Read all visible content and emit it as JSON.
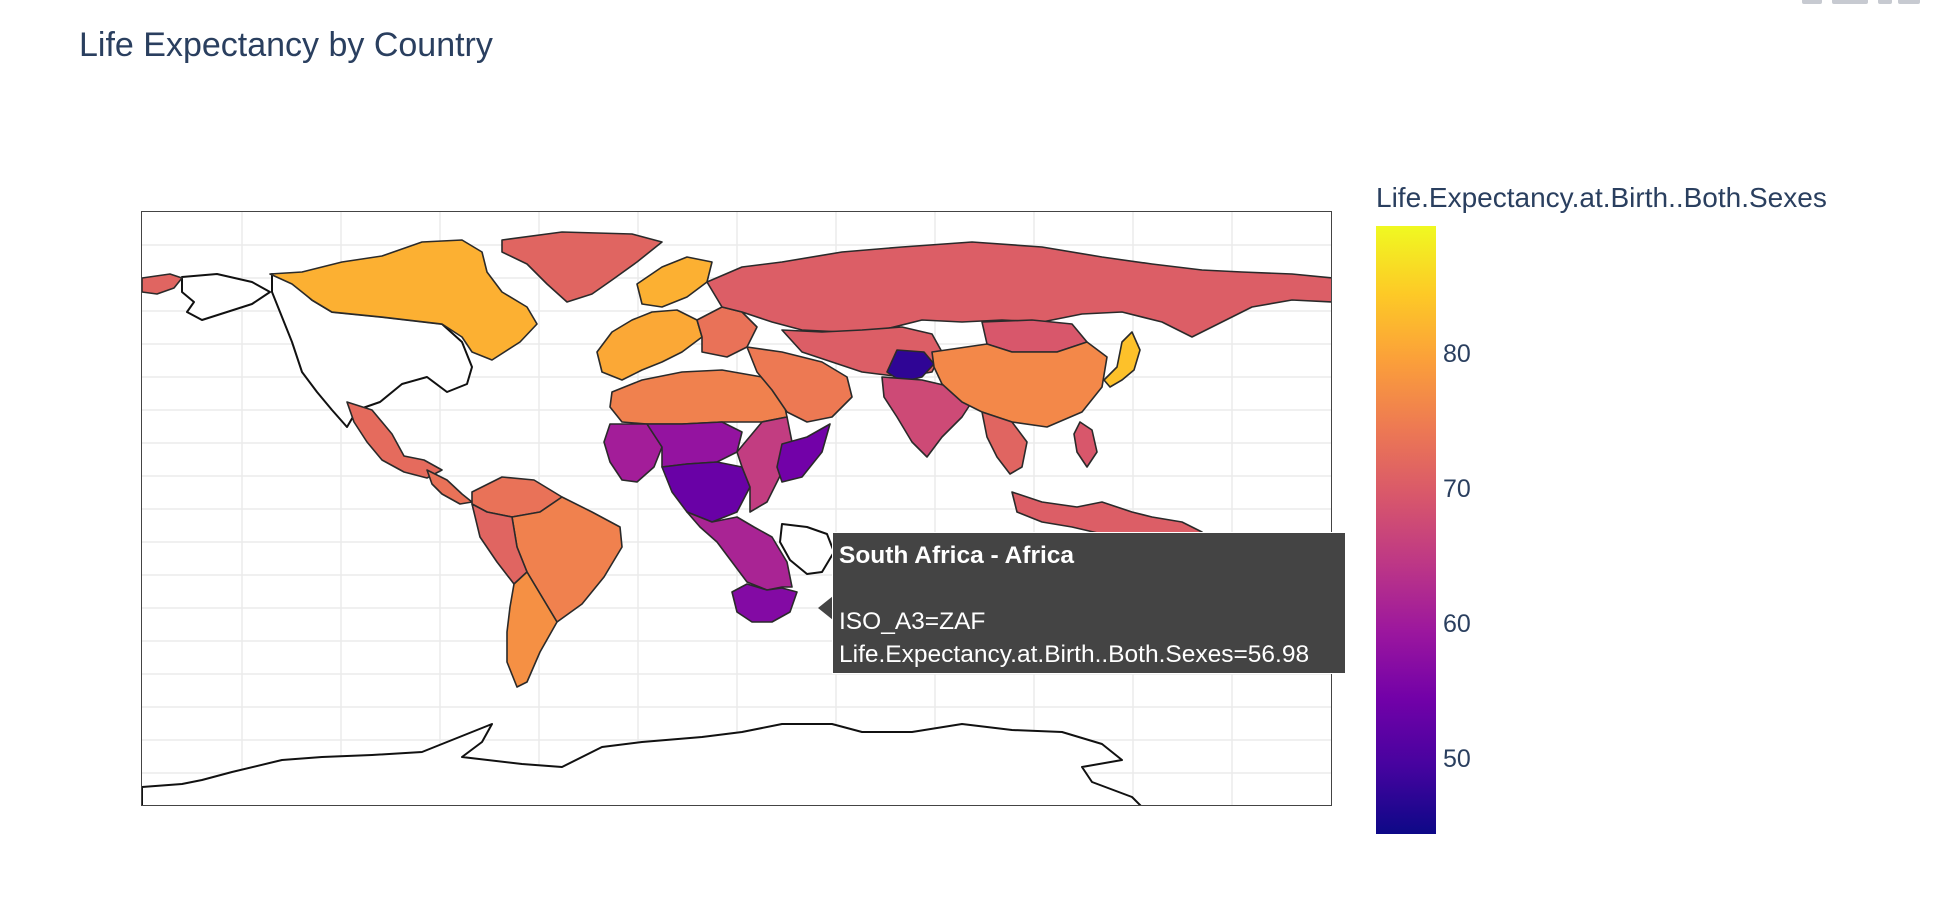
{
  "title": "Life Expectancy by Country",
  "colorbar": {
    "title": "Life.Expectancy.at.Birth..Both.Sexes",
    "ticks": [
      "80",
      "70",
      "60",
      "50"
    ],
    "colorscale": [
      "#0d0887",
      "#46039f",
      "#7201a8",
      "#9c179e",
      "#bd3786",
      "#d8576b",
      "#ed7953",
      "#fb9f3a",
      "#fdca26",
      "#f0f921"
    ],
    "range": [
      45,
      90
    ]
  },
  "tooltip": {
    "title": "South Africa - Africa",
    "line1": "ISO_A3=ZAF",
    "line2": "Life.Expectancy.at.Birth..Both.Sexes=56.98"
  },
  "colors": {
    "low": "#0d0887",
    "high": "#f0f921",
    "tooltip_bg": "#444444",
    "border": "#444444"
  },
  "regions": [
    {
      "name": "canada",
      "value": 82
    },
    {
      "name": "greenland",
      "value": 72
    },
    {
      "name": "alaska",
      "value": 72
    },
    {
      "name": "mexico",
      "value": 73
    },
    {
      "name": "central-america",
      "value": 74
    },
    {
      "name": "south-america-north",
      "value": 74
    },
    {
      "name": "brazil",
      "value": 76
    },
    {
      "name": "west-coast-south-america",
      "value": 72
    },
    {
      "name": "southern-cone",
      "value": 78
    },
    {
      "name": "europe",
      "value": 81
    },
    {
      "name": "scandinavia",
      "value": 82
    },
    {
      "name": "eastern-europe",
      "value": 74
    },
    {
      "name": "russia",
      "value": 71
    },
    {
      "name": "north-africa",
      "value": 76
    },
    {
      "name": "west-africa",
      "value": 61
    },
    {
      "name": "sahel",
      "value": 59
    },
    {
      "name": "central-africa",
      "value": 54
    },
    {
      "name": "east-africa",
      "value": 66
    },
    {
      "name": "horn-of-africa",
      "value": 55
    },
    {
      "name": "southern-africa",
      "value": 62
    },
    {
      "name": "south-africa",
      "value": 56.98
    },
    {
      "name": "middle-east",
      "value": 75
    },
    {
      "name": "central-asia",
      "value": 71
    },
    {
      "name": "afghanistan",
      "value": 48
    },
    {
      "name": "south-asia",
      "value": 68
    },
    {
      "name": "china",
      "value": 77
    },
    {
      "name": "mongolia",
      "value": 70
    },
    {
      "name": "japan",
      "value": 84
    },
    {
      "name": "southeast-asia",
      "value": 72
    },
    {
      "name": "indonesia",
      "value": 71
    },
    {
      "name": "philippines",
      "value": 70
    }
  ]
}
